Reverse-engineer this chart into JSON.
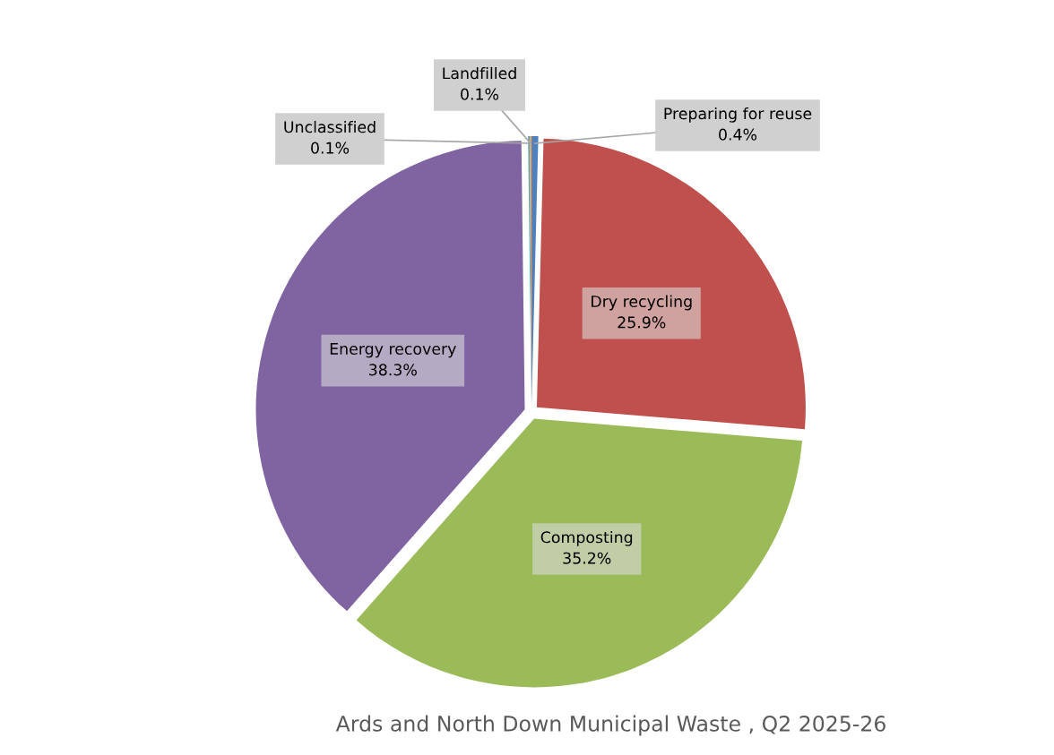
{
  "chart_data": {
    "type": "pie",
    "title": "Ards and North Down Municipal Waste , Q2 2025-26",
    "categories": [
      "Preparing for reuse",
      "Dry recycling",
      "Composting",
      "Energy recovery",
      "Unclassified",
      "Landfilled"
    ],
    "values": [
      0.4,
      25.9,
      35.2,
      38.3,
      0.1,
      0.1
    ],
    "value_labels": [
      "0.4%",
      "25.9%",
      "35.2%",
      "38.3%",
      "0.1%",
      "0.1%"
    ],
    "colors": [
      "#4f81bd",
      "#c0504d",
      "#9bbb59",
      "#8064a2",
      "#4bacc6",
      "#f79646"
    ]
  }
}
